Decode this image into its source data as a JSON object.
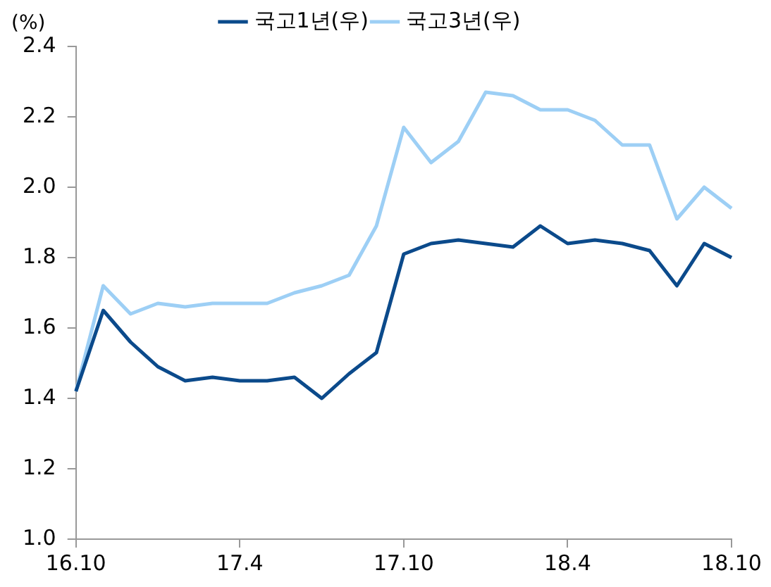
{
  "chart_data": {
    "type": "line",
    "ylabel": "(%)",
    "categories": [
      "16.10",
      null,
      null,
      null,
      null,
      null,
      "17.4",
      null,
      null,
      null,
      null,
      null,
      "17.10",
      null,
      null,
      null,
      null,
      null,
      "18.4",
      null,
      null,
      null,
      null,
      null,
      "18.10"
    ],
    "series": [
      {
        "name": "국고1년(우)",
        "color": "#0b4a8b",
        "values": [
          1.42,
          1.65,
          1.56,
          1.49,
          1.45,
          1.46,
          1.45,
          1.45,
          1.46,
          1.4,
          1.47,
          1.53,
          1.81,
          1.84,
          1.85,
          1.84,
          1.83,
          1.89,
          1.84,
          1.85,
          1.84,
          1.82,
          1.72,
          1.84,
          1.8
        ]
      },
      {
        "name": "국고3년(우)",
        "color": "#9dcff5",
        "values": [
          1.42,
          1.72,
          1.64,
          1.67,
          1.66,
          1.67,
          1.67,
          1.67,
          1.7,
          1.72,
          1.75,
          1.89,
          2.17,
          2.07,
          2.13,
          2.27,
          2.26,
          2.22,
          2.22,
          2.19,
          2.12,
          2.12,
          1.91,
          2.0,
          1.94
        ]
      }
    ],
    "ylim": [
      1.0,
      2.4
    ],
    "yticks": [
      {
        "value": 1.0,
        "label": "1.0"
      },
      1.2,
      1.4,
      1.6,
      1.8,
      {
        "value": 2.0,
        "label": "2.0"
      },
      2.2,
      2.4
    ],
    "grid": false,
    "legend": "top",
    "marker": "none",
    "line_style": "solid"
  }
}
